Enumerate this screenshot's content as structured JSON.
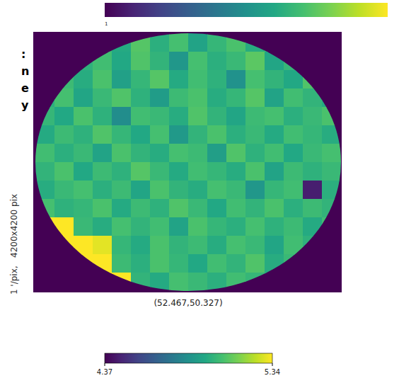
{
  "chart_data": {
    "type": "heatmap",
    "subtitle": "(52.467,50.327)",
    "side_label": "1 '/pix,   4200x4200 pix",
    "side_text": [
      ":",
      "n",
      "e",
      "y"
    ],
    "top_colorbar_label": "1",
    "tick_labels": false,
    "cells": [
      [
        null,
        null,
        null,
        5.02,
        4.96,
        5.08,
        4.98,
        5.05,
        4.93,
        5.01,
        5.06,
        4.97,
        5.03,
        null,
        null,
        null
      ],
      [
        null,
        null,
        4.99,
        5.04,
        4.95,
        5.07,
        5.0,
        4.88,
        5.05,
        4.98,
        5.02,
        5.09,
        4.94,
        5.01,
        null,
        null
      ],
      [
        null,
        5.03,
        4.97,
        5.06,
        4.92,
        5.01,
        5.08,
        4.96,
        5.04,
        4.99,
        4.86,
        5.05,
        5.0,
        4.95,
        5.07,
        null
      ],
      [
        4.98,
        5.05,
        4.94,
        5.02,
        5.07,
        4.99,
        4.9,
        5.03,
        5.06,
        4.97,
        5.01,
        5.08,
        4.93,
        5.04,
        5.0,
        4.96
      ],
      [
        5.01,
        4.95,
        5.06,
        4.99,
        4.84,
        5.04,
        5.02,
        4.97,
        5.07,
        5.0,
        4.94,
        5.03,
        5.05,
        4.98,
        5.02,
        5.06
      ],
      [
        4.96,
        5.03,
        4.99,
        5.07,
        5.01,
        4.95,
        5.05,
        4.89,
        5.0,
        5.06,
        4.98,
        5.02,
        4.96,
        5.04,
        5.01,
        4.97
      ],
      [
        5.04,
        4.98,
        5.02,
        4.93,
        5.06,
        5.0,
        4.97,
        5.05,
        5.03,
        4.91,
        5.07,
        4.99,
        5.04,
        4.95,
        5.02,
        5.05
      ],
      [
        5.0,
        5.06,
        4.95,
        5.03,
        4.99,
        5.08,
        5.02,
        4.96,
        5.04,
        5.01,
        4.97,
        5.06,
        4.93,
        5.03,
        4.99,
        5.02
      ],
      [
        4.97,
        5.02,
        5.05,
        4.98,
        5.03,
        4.94,
        5.06,
        5.0,
        4.97,
        5.05,
        5.02,
        4.88,
        5.01,
        5.04,
        4.45,
        4.98
      ],
      [
        5.05,
        4.99,
        5.01,
        5.06,
        4.96,
        5.03,
        4.99,
        5.07,
        5.02,
        4.95,
        5.04,
        5.0,
        5.06,
        4.98,
        5.03,
        5.0
      ],
      [
        5.34,
        5.34,
        5.02,
        4.97,
        5.05,
        5.0,
        5.04,
        4.93,
        5.06,
        5.01,
        4.98,
        5.05,
        4.99,
        5.03,
        4.96,
        5.04
      ],
      [
        null,
        5.34,
        5.34,
        5.3,
        5.01,
        4.96,
        5.06,
        5.0,
        5.03,
        4.97,
        5.05,
        5.02,
        4.94,
        5.04,
        4.99,
        null
      ],
      [
        null,
        null,
        5.34,
        5.34,
        5.03,
        4.98,
        5.06,
        5.01,
        4.95,
        5.04,
        5.0,
        5.07,
        4.97,
        5.02,
        null,
        null
      ],
      [
        null,
        null,
        null,
        5.34,
        5.34,
        5.0,
        4.96,
        5.05,
        5.02,
        4.98,
        5.04,
        5.01,
        4.99,
        null,
        null,
        null
      ]
    ],
    "colorbar": {
      "range": [
        4.37,
        5.34
      ],
      "ticks": [
        4.37,
        5.34
      ]
    }
  }
}
